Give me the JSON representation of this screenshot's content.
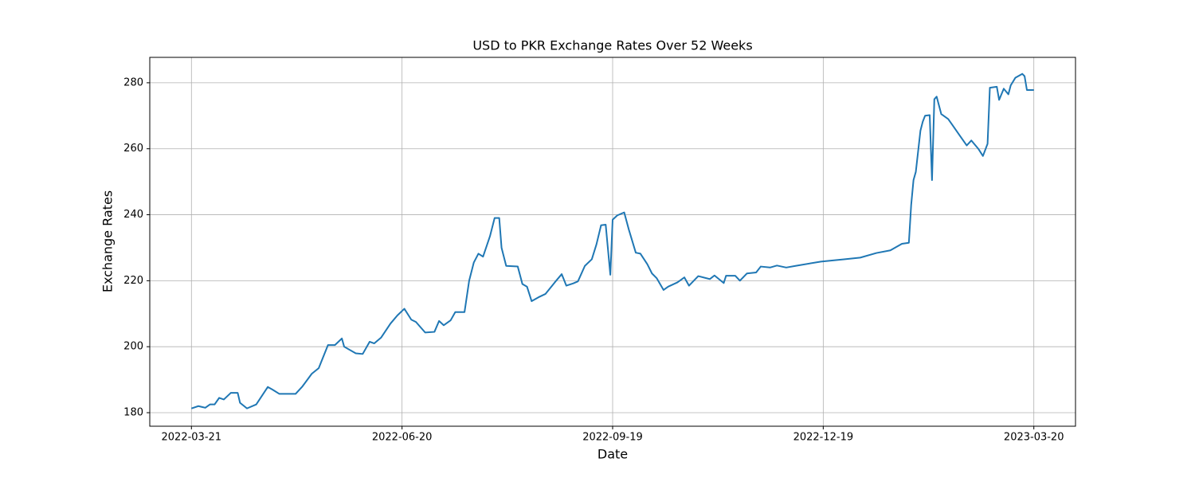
{
  "chart_data": {
    "type": "line",
    "title": "USD to PKR Exchange Rates Over 52 Weeks",
    "x_label": "Date",
    "y_label": "Exchange Rates",
    "color": "#1f77b4",
    "grid": true,
    "x": [
      "2022-03-21",
      "2022-03-24",
      "2022-03-27",
      "2022-03-29",
      "2022-03-31",
      "2022-04-02",
      "2022-04-04",
      "2022-04-07",
      "2022-04-10",
      "2022-04-11",
      "2022-04-14",
      "2022-04-18",
      "2022-04-23",
      "2022-04-25",
      "2022-04-28",
      "2022-05-01",
      "2022-05-05",
      "2022-05-08",
      "2022-05-12",
      "2022-05-15",
      "2022-05-19",
      "2022-05-22",
      "2022-05-25",
      "2022-05-26",
      "2022-05-31",
      "2022-06-03",
      "2022-06-06",
      "2022-06-08",
      "2022-06-11",
      "2022-06-15",
      "2022-06-18",
      "2022-06-21",
      "2022-06-24",
      "2022-06-26",
      "2022-06-30",
      "2022-07-04",
      "2022-07-06",
      "2022-07-08",
      "2022-07-11",
      "2022-07-13",
      "2022-07-17",
      "2022-07-19",
      "2022-07-21",
      "2022-07-23",
      "2022-07-25",
      "2022-07-28",
      "2022-07-30",
      "2022-08-01",
      "2022-08-02",
      "2022-08-04",
      "2022-08-09",
      "2022-08-11",
      "2022-08-13",
      "2022-08-15",
      "2022-08-18",
      "2022-08-21",
      "2022-08-25",
      "2022-08-28",
      "2022-08-30",
      "2022-09-02",
      "2022-09-04",
      "2022-09-07",
      "2022-09-10",
      "2022-09-12",
      "2022-09-14",
      "2022-09-16",
      "2022-09-18",
      "2022-09-19",
      "2022-09-21",
      "2022-09-24",
      "2022-09-26",
      "2022-09-29",
      "2022-10-01",
      "2022-10-04",
      "2022-10-06",
      "2022-10-08",
      "2022-10-11",
      "2022-10-13",
      "2022-10-17",
      "2022-10-20",
      "2022-10-22",
      "2022-10-26",
      "2022-10-31",
      "2022-11-02",
      "2022-11-06",
      "2022-11-07",
      "2022-11-11",
      "2022-11-13",
      "2022-11-16",
      "2022-11-20",
      "2022-11-22",
      "2022-11-26",
      "2022-11-29",
      "2022-12-03",
      "2022-12-07",
      "2022-12-18",
      "2022-12-28",
      "2023-01-04",
      "2023-01-11",
      "2023-01-17",
      "2023-01-22",
      "2023-01-25",
      "2023-01-26",
      "2023-01-27",
      "2023-01-28",
      "2023-01-30",
      "2023-01-31",
      "2023-02-01",
      "2023-02-03",
      "2023-02-04",
      "2023-02-05",
      "2023-02-06",
      "2023-02-08",
      "2023-02-11",
      "2023-02-13",
      "2023-02-16",
      "2023-02-19",
      "2023-02-21",
      "2023-02-24",
      "2023-02-26",
      "2023-02-28",
      "2023-03-01",
      "2023-03-04",
      "2023-03-05",
      "2023-03-07",
      "2023-03-09",
      "2023-03-10",
      "2023-03-12",
      "2023-03-15",
      "2023-03-16",
      "2023-03-17",
      "2023-03-20"
    ],
    "values": [
      181.3,
      182,
      181.5,
      182.5,
      182.5,
      184.5,
      184,
      186,
      186,
      183,
      181.3,
      182.5,
      187.8,
      187,
      185.7,
      185.7,
      185.7,
      188,
      191.8,
      193.5,
      200.5,
      200.5,
      202.5,
      200,
      198,
      197.8,
      201.5,
      201,
      202.8,
      207,
      209.5,
      211.5,
      208.2,
      207.5,
      204.3,
      204.5,
      207.8,
      206.5,
      208,
      210.5,
      210.5,
      220,
      225.5,
      228.2,
      227.3,
      233.5,
      239,
      239,
      230,
      224.5,
      224.3,
      219,
      218.2,
      213.8,
      215,
      216,
      219.5,
      222,
      218.5,
      219.2,
      219.8,
      224.5,
      226.5,
      231,
      236.8,
      237,
      221.8,
      238.5,
      239.8,
      240.7,
      235.5,
      228.5,
      228.2,
      225,
      222.2,
      220.8,
      217.2,
      218.2,
      219.5,
      221,
      218.5,
      221.4,
      220.5,
      221.6,
      219.3,
      221.5,
      221.5,
      220,
      222.2,
      222.5,
      224.3,
      224,
      224.6,
      224,
      224.5,
      225.8,
      226.5,
      227,
      228.4,
      229.2,
      231.2,
      231.5,
      243,
      250.5,
      253,
      265.5,
      268.2,
      270,
      270.2,
      250.5,
      275,
      275.8,
      270.5,
      269,
      267,
      264,
      261,
      262.5,
      260,
      257.8,
      261.5,
      278.5,
      278.8,
      274.8,
      278.2,
      276.5,
      279.2,
      281.5,
      282.7,
      282,
      277.8,
      277.8
    ],
    "xlim": [
      "2022-03-03",
      "2023-04-07"
    ],
    "xticks": [
      "2022-03-21",
      "2022-06-20",
      "2022-09-19",
      "2022-12-19",
      "2023-03-20"
    ],
    "ylim": [
      175.9,
      287.7
    ],
    "yticks": [
      180,
      200,
      220,
      240,
      260,
      280
    ]
  }
}
